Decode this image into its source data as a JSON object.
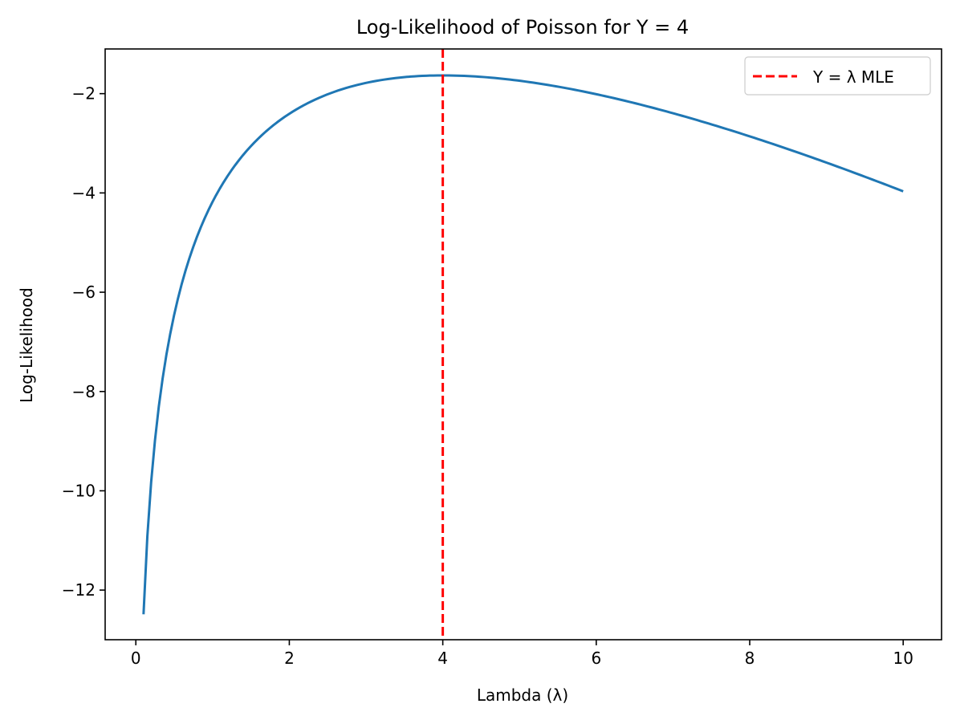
{
  "chart_data": {
    "type": "line",
    "title": "Log-Likelihood of Poisson for Y = 4",
    "xlabel": "Lambda (λ)",
    "ylabel": "Log-Likelihood",
    "xlim": [
      -0.4,
      10.5
    ],
    "ylim": [
      -13.0,
      -1.1
    ],
    "x_ticks": [
      0,
      2,
      4,
      6,
      8,
      10
    ],
    "x_tick_labels": [
      "0",
      "2",
      "4",
      "6",
      "8",
      "10"
    ],
    "y_ticks": [
      -12,
      -10,
      -8,
      -6,
      -4,
      -2
    ],
    "y_tick_labels": [
      "−12",
      "−10",
      "−8",
      "−6",
      "−4",
      "−2"
    ],
    "grid": false,
    "legend_position": "upper right",
    "observed_y": 4,
    "lambda_range": [
      0.1,
      10
    ],
    "series": [
      {
        "kind": "curve",
        "formula": "poisson_log_likelihood",
        "color": "#1f77b4",
        "samples": 200
      },
      {
        "kind": "vline",
        "name": "Y = λ MLE",
        "x": 4,
        "color": "#ff0000",
        "dash": "dashed"
      }
    ]
  }
}
